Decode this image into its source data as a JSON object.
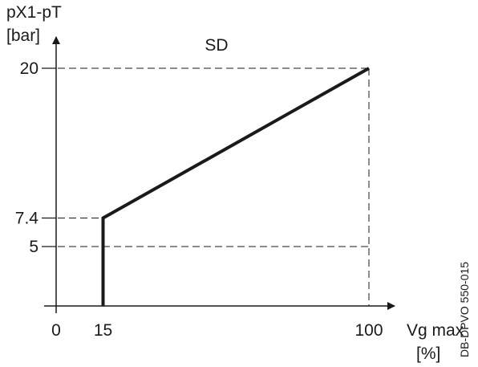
{
  "chart_data": {
    "type": "line",
    "title": "SD",
    "ylabel": {
      "line1": "pX1-pT",
      "line2": "[bar]"
    },
    "xlabel": {
      "line1": "Vg max",
      "line2": "[%]"
    },
    "x_ticks": [
      "0",
      "15",
      "100"
    ],
    "y_ticks": [
      "5",
      "7.4",
      "20"
    ],
    "xlim": [
      0,
      100
    ],
    "ylim": [
      0,
      20
    ],
    "series": [
      {
        "x": [
          15,
          15,
          100
        ],
        "y": [
          0,
          7.4,
          20
        ]
      }
    ],
    "reference_lines": [
      {
        "y": 20,
        "x": 100
      },
      {
        "y": 7.4,
        "x": 15
      },
      {
        "y": 5,
        "x": 100
      }
    ],
    "grid": false
  },
  "doc_code": "DB-DPVO 550-015"
}
